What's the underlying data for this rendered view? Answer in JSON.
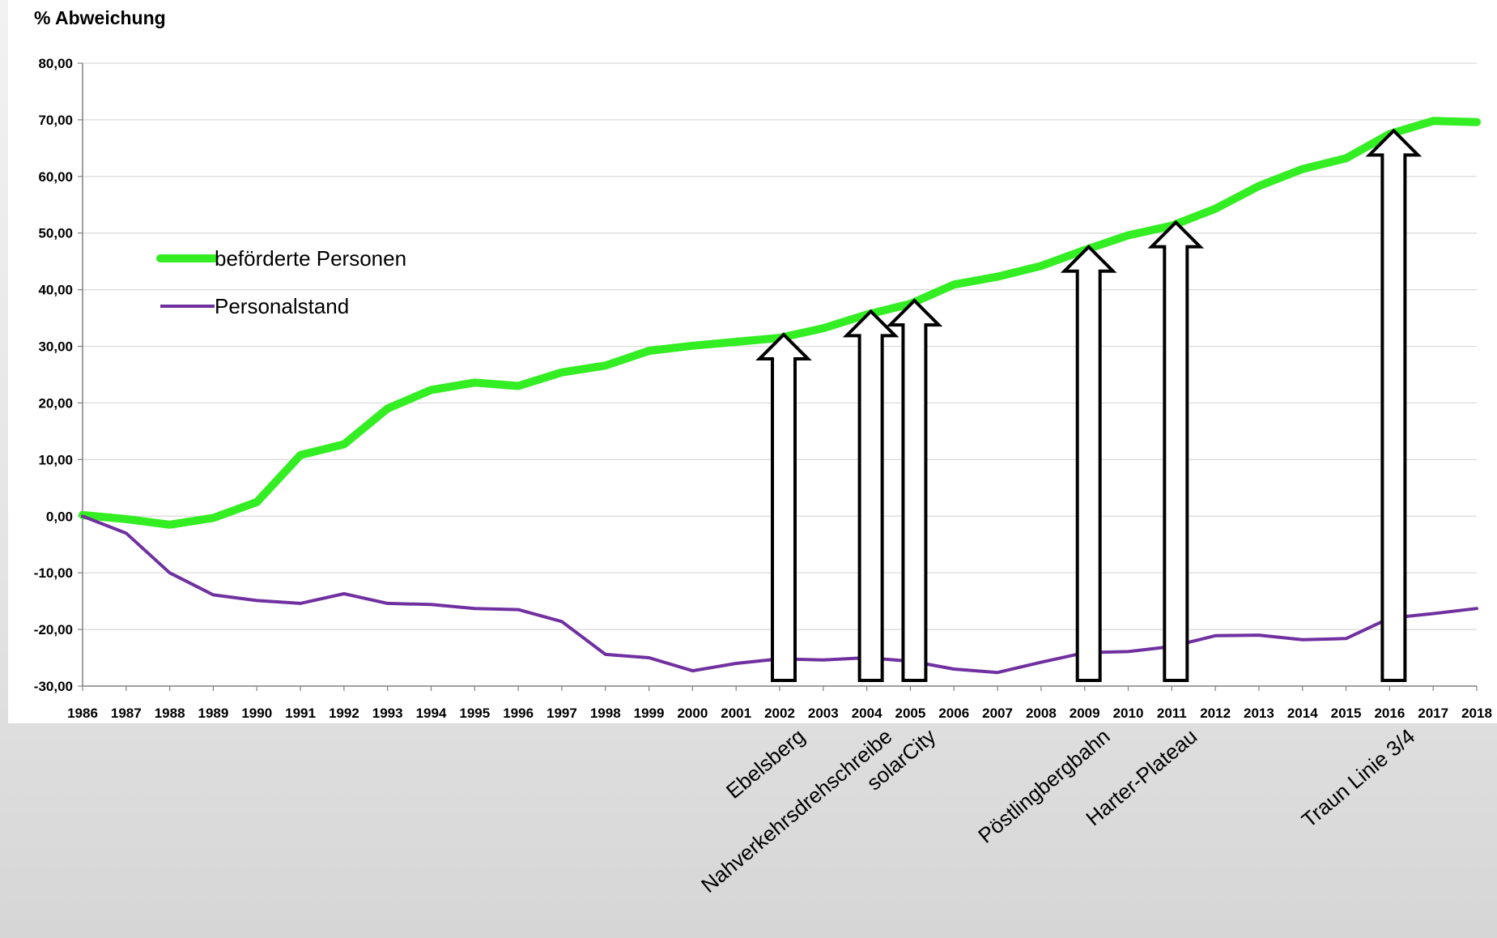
{
  "colors": {
    "green_series": "#33ee22",
    "purple_series": "#7030a0",
    "gridline": "#d9d9d9",
    "axis": "#808080"
  },
  "chart_data": {
    "type": "line",
    "ylabel": "% Abweichung",
    "ylim": [
      -30,
      80
    ],
    "ytick_values": [
      -30,
      -20,
      -10,
      0,
      10,
      20,
      30,
      40,
      50,
      60,
      70,
      80
    ],
    "ytick_labels": [
      "-30,00",
      "-20,00",
      "-10,00",
      "0,00",
      "10,00",
      "20,00",
      "30,00",
      "40,00",
      "50,00",
      "60,00",
      "70,00",
      "80,00"
    ],
    "categories": [
      "1986",
      "1987",
      "1988",
      "1989",
      "1990",
      "1991",
      "1992",
      "1993",
      "1994",
      "1995",
      "1996",
      "1997",
      "1998",
      "1999",
      "2000",
      "2001",
      "2002",
      "2003",
      "2004",
      "2005",
      "2006",
      "2007",
      "2008",
      "2009",
      "2010",
      "2011",
      "2012",
      "2013",
      "2014",
      "2015",
      "2016",
      "2017",
      "2018"
    ],
    "grid": "horizontal",
    "legend_position": "upper-left",
    "series": [
      {
        "name": "beförderte Personen",
        "color": "#33ee22",
        "values": [
          0.2,
          -0.5,
          -1.5,
          -0.3,
          2.5,
          10.8,
          12.7,
          19.0,
          22.3,
          23.6,
          23.0,
          25.4,
          26.6,
          29.2,
          30.1,
          30.8,
          31.5,
          33.2,
          35.6,
          37.5,
          40.9,
          42.3,
          44.2,
          47.0,
          49.6,
          51.3,
          54.3,
          58.3,
          61.3,
          63.2,
          67.5,
          69.8,
          69.6
        ]
      },
      {
        "name": "Personalstand",
        "color": "#7030a0",
        "values": [
          0.0,
          -3.0,
          -10.0,
          -13.9,
          -14.9,
          -15.4,
          -13.7,
          -15.4,
          -15.6,
          -16.3,
          -16.5,
          -18.6,
          -24.4,
          -25.0,
          -27.3,
          -26.0,
          -25.2,
          -25.4,
          -25.0,
          -25.6,
          -27.0,
          -27.6,
          -25.8,
          -24.1,
          -23.9,
          -23.0,
          -21.1,
          -21.0,
          -21.8,
          -21.6,
          -18.0,
          -17.2,
          -16.3
        ]
      }
    ],
    "annotations": [
      {
        "label": "Ebelsberg",
        "year": "2002",
        "top": 31.5
      },
      {
        "label": "Nahverkehrsdrehschreibe",
        "year": "2004",
        "top": 35.6
      },
      {
        "label": "solarCity",
        "year": "2005",
        "top": 37.5
      },
      {
        "label": "Pöstlingbergbahn",
        "year": "2009",
        "top": 47.0
      },
      {
        "label": "Harter-Plateau",
        "year": "2011",
        "top": 51.3
      },
      {
        "label": "Traun Linie 3/4",
        "year": "2016",
        "top": 67.5
      }
    ]
  }
}
